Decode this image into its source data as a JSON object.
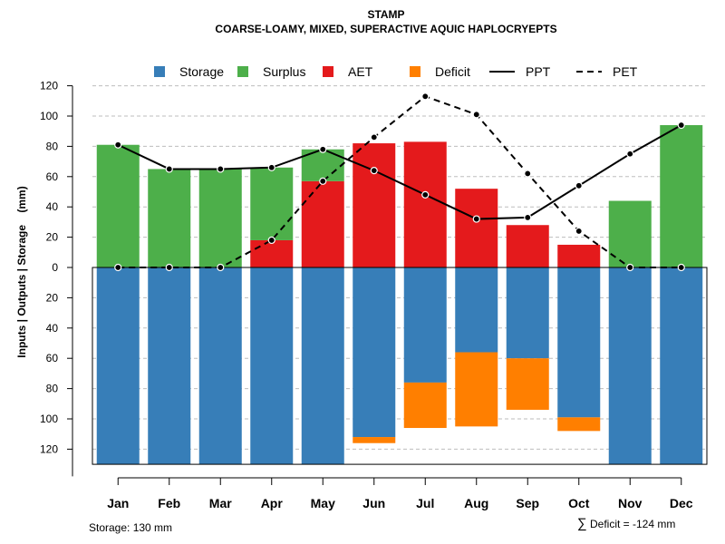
{
  "chart_data": {
    "type": "bar",
    "title": "STAMP",
    "subtitle": "COARSE-LOAMY, MIXED, SUPERACTIVE AQUIC HAPLOCRYEPTS",
    "ylabel": "Inputs | Outputs | Storage    (mm)",
    "xlabel": "",
    "ylim": [
      -130,
      120
    ],
    "y_ticks": [
      120,
      100,
      80,
      60,
      40,
      20,
      0,
      -20,
      -40,
      -60,
      -80,
      -100,
      -120
    ],
    "y_tick_labels": [
      "120",
      "100",
      "80",
      "60",
      "40",
      "20",
      "0",
      "20",
      "40",
      "60",
      "80",
      "100",
      "120"
    ],
    "grid": true,
    "legend_position": "top",
    "categories": [
      "Jan",
      "Feb",
      "Mar",
      "Apr",
      "May",
      "Jun",
      "Jul",
      "Aug",
      "Sep",
      "Oct",
      "Nov",
      "Dec"
    ],
    "legend": [
      {
        "name": "Storage",
        "kind": "box",
        "color": "#377eb8"
      },
      {
        "name": "Surplus",
        "kind": "box",
        "color": "#4daf4a"
      },
      {
        "name": "AET",
        "kind": "box",
        "color": "#e41a1c"
      },
      {
        "name": "Deficit",
        "kind": "box",
        "color": "#ff7f00"
      },
      {
        "name": "PPT",
        "kind": "line",
        "color": "#000000",
        "dash": "solid"
      },
      {
        "name": "PET",
        "kind": "line",
        "color": "#000000",
        "dash": "dashed"
      }
    ],
    "series": [
      {
        "name": "Storage",
        "values": [
          130,
          130,
          130,
          130,
          130,
          112,
          76,
          56,
          60,
          99,
          130,
          130
        ]
      },
      {
        "name": "Deficit",
        "values": [
          0,
          0,
          0,
          0,
          0,
          4,
          30,
          49,
          34,
          9,
          0,
          0
        ]
      },
      {
        "name": "AET",
        "values": [
          0,
          0,
          0,
          18,
          57,
          82,
          83,
          52,
          28,
          15,
          0,
          0
        ]
      },
      {
        "name": "Surplus",
        "values": [
          81,
          65,
          65,
          48,
          21,
          0,
          0,
          0,
          0,
          0,
          44,
          94
        ]
      },
      {
        "name": "PPT",
        "values": [
          81,
          65,
          65,
          66,
          78,
          64,
          48,
          32,
          33,
          54,
          75,
          94
        ]
      },
      {
        "name": "PET",
        "values": [
          0,
          0,
          0,
          18,
          57,
          86,
          113,
          101,
          62,
          24,
          0,
          0
        ]
      }
    ],
    "footer_left": "Storage: 130 mm",
    "footer_right_symbol": "∑",
    "footer_right": "Deficit = -124 mm"
  }
}
